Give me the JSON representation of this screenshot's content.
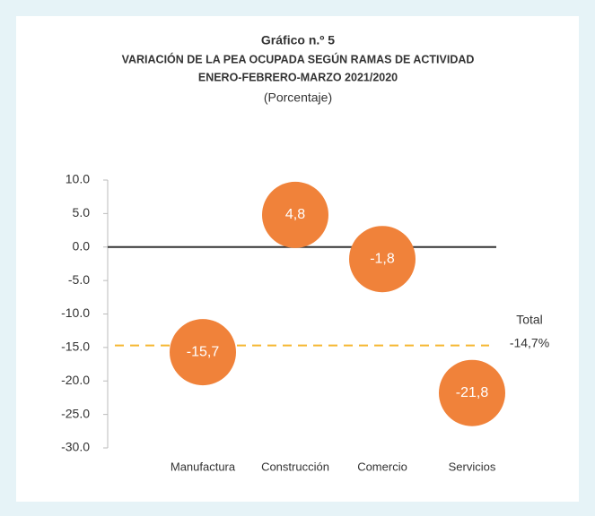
{
  "chart_data": {
    "type": "scatter",
    "title": "Gráfico n.º 5",
    "subtitle": [
      "VARIACIÓN DE LA PEA OCUPADA SEGÚN RAMAS DE ACTIVIDAD",
      "ENERO-FEBRERO-MARZO 2021/2020"
    ],
    "unit_label": "(Porcentaje)",
    "categories": [
      "Manufactura",
      "Construcción",
      "Comercio",
      "Servicios"
    ],
    "values": [
      -15.7,
      4.8,
      -1.8,
      -21.8
    ],
    "value_labels": [
      "-15,7",
      "4,8",
      "-1,8",
      "-21,8"
    ],
    "color": "#f0823a",
    "ylim": [
      -30,
      10
    ],
    "yticks": [
      {
        "value": 10,
        "label": "10.0"
      },
      {
        "value": 5,
        "label": "5.0"
      },
      {
        "value": 0,
        "label": "0.0"
      },
      {
        "value": -5,
        "label": "-5.0"
      },
      {
        "value": -10,
        "label": "-10.0"
      },
      {
        "value": -15,
        "label": "-15.0"
      },
      {
        "value": -20,
        "label": "-20.0"
      },
      {
        "value": -25,
        "label": "-25.0"
      },
      {
        "value": -30,
        "label": "-30.0"
      }
    ],
    "reference_line": {
      "name": "Total",
      "value": -14.7,
      "label": "-14,7%",
      "color": "#f5b730"
    }
  }
}
